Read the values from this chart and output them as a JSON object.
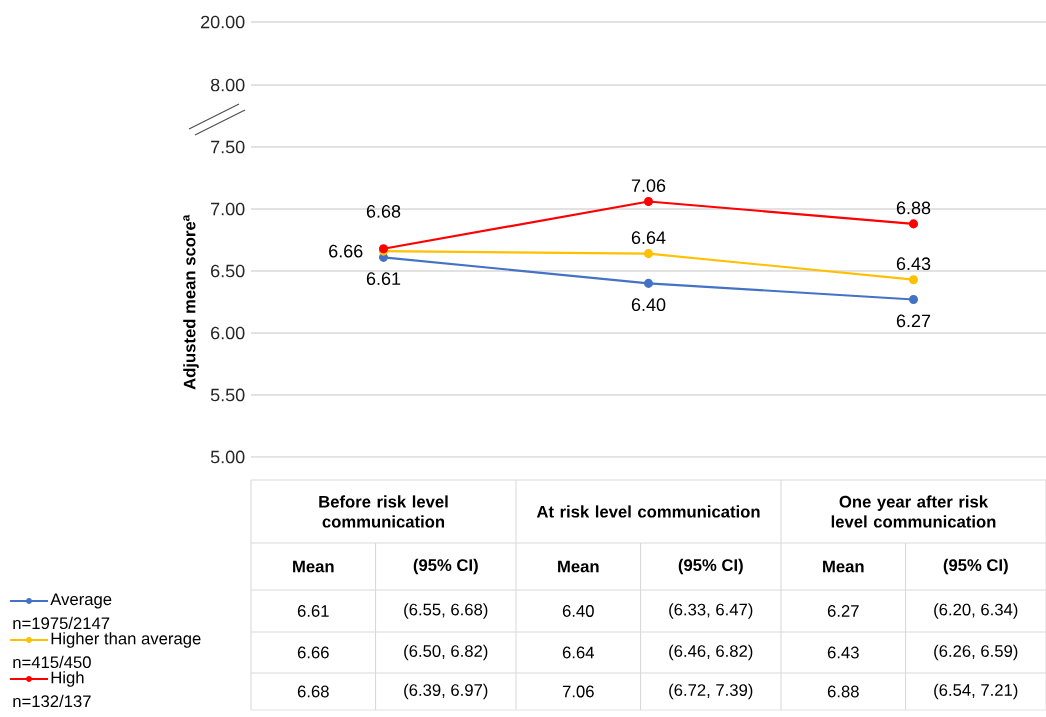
{
  "chart_data": [
    {
      "type": "line",
      "categories": [
        null,
        null,
        null
      ],
      "ylim": [
        8,
        20
      ],
      "yticks": [
        {
          "value": 8,
          "label": "8.00"
        },
        {
          "value": 20,
          "label": "20.00"
        }
      ],
      "grid": "y",
      "tick_labels": "y"
    },
    {
      "type": "line",
      "ylabel": "Adjusted mean score$^{a}$",
      "categories": [
        "Before risk level communication",
        "At risk level communication",
        "One year after risk level communication"
      ],
      "series": [
        {
          "name": "Average",
          "color": "#4472c4",
          "values": [
            6.61,
            6.4,
            6.27
          ],
          "value_labels": [
            "6.61",
            "6.40",
            "6.27"
          ]
        },
        {
          "name": "Higher than average",
          "color": "#ffc000",
          "values": [
            6.66,
            6.64,
            6.43
          ],
          "value_labels": [
            "6.66",
            "6.64",
            "6.43"
          ]
        },
        {
          "name": "High",
          "color": "#ff0000",
          "values": [
            6.68,
            7.06,
            6.88
          ],
          "value_labels": [
            "6.68",
            "7.06",
            "6.88"
          ]
        }
      ],
      "ylim": [
        5,
        7.5
      ],
      "yticks": [
        {
          "value": 5,
          "label": "5.00"
        },
        {
          "value": 5.5,
          "label": "5.50"
        },
        {
          "value": 6,
          "label": "6.00"
        },
        {
          "value": 6.5,
          "label": "6.50"
        },
        {
          "value": 7,
          "label": "7.00"
        },
        {
          "value": 7.5,
          "label": "7.50"
        }
      ],
      "grid": "y",
      "legend": "bottom left",
      "marker": "circle",
      "line_style": "solid",
      "annotations": [
        "Mean",
        "(95% CI)",
        "n=1975/2147",
        "n=415/450",
        "n=132/137",
        "(6.55, 6.68)",
        "(6.33, 6.47)",
        "(6.20, 6.34)",
        "(6.50, 6.82)",
        "(6.46, 6.82)",
        "(6.26, 6.59)",
        "(6.39, 6.97)",
        "(6.72, 7.39)",
        "(6.54, 7.21)"
      ]
    }
  ]
}
